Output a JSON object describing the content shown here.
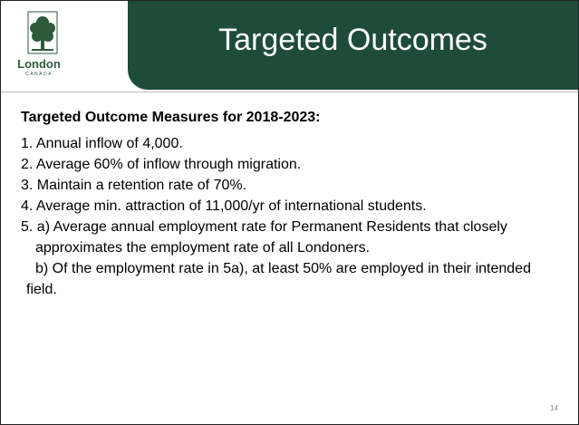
{
  "logo": {
    "name": "London",
    "country": "CANADA"
  },
  "header": {
    "title": "Targeted Outcomes"
  },
  "body": {
    "heading": "Targeted Outcome Measures for 2018-2023:",
    "items": [
      {
        "text": "1. Annual inflow of 4,000.",
        "style": "item"
      },
      {
        "text": "2. Average 60% of inflow through migration.",
        "style": "item"
      },
      {
        "text": "3. Maintain a retention rate of 70%.",
        "style": "item"
      },
      {
        "text": "4. Average min. attraction of 11,000/yr of international students.",
        "style": "item"
      },
      {
        "text": "5. a) Average annual employment rate for Permanent Residents that closely approximates the employment rate of all Londoners.",
        "style": "item"
      },
      {
        "text": "b) Of the employment rate in 5a), at least 50% are employed in their intended field.",
        "style": "sub"
      }
    ]
  },
  "footer": {
    "page_number": "14"
  }
}
